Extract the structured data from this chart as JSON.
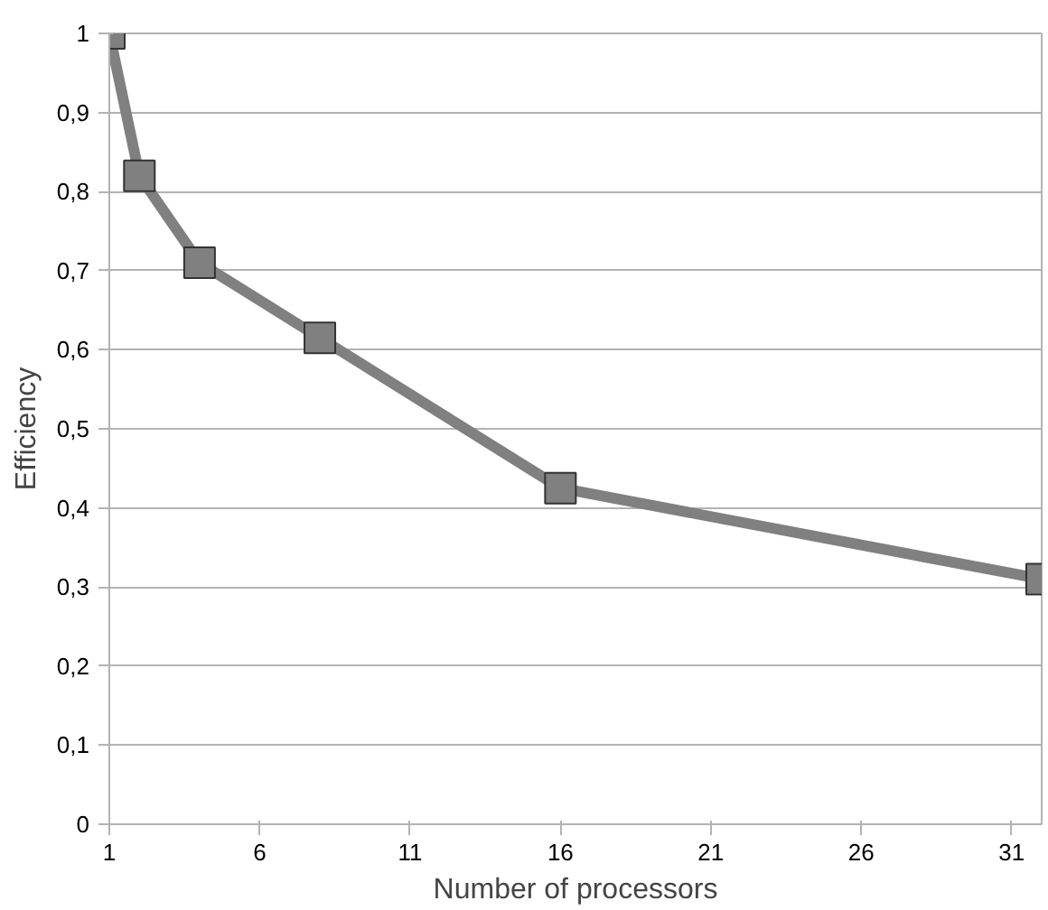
{
  "chart_data": {
    "type": "line",
    "xlabel": "Number of processors",
    "ylabel": "Efficiency",
    "x": [
      1,
      2,
      4,
      8,
      16,
      32
    ],
    "series": [
      {
        "color": "#808080",
        "values": [
          1.0,
          0.82,
          0.71,
          0.615,
          0.425,
          0.31
        ]
      }
    ],
    "xlim": [
      1,
      32
    ],
    "xticks": [
      1,
      6,
      11,
      16,
      21,
      26,
      31
    ],
    "ylim": [
      0,
      1
    ],
    "yticks": [
      0,
      {
        "value": 0.1,
        "label": "0,1"
      },
      {
        "value": 0.2,
        "label": "0,2"
      },
      {
        "value": 0.3,
        "label": "0,3"
      },
      {
        "value": 0.4,
        "label": "0,4"
      },
      {
        "value": 0.5,
        "label": "0,5"
      },
      {
        "value": 0.6,
        "label": "0,6"
      },
      {
        "value": 0.7,
        "label": "0,7"
      },
      {
        "value": 0.8,
        "label": "0,8"
      },
      {
        "value": 0.9,
        "label": "0,9"
      },
      1
    ],
    "grid": "y",
    "marker": "square",
    "line_style": "solid"
  }
}
